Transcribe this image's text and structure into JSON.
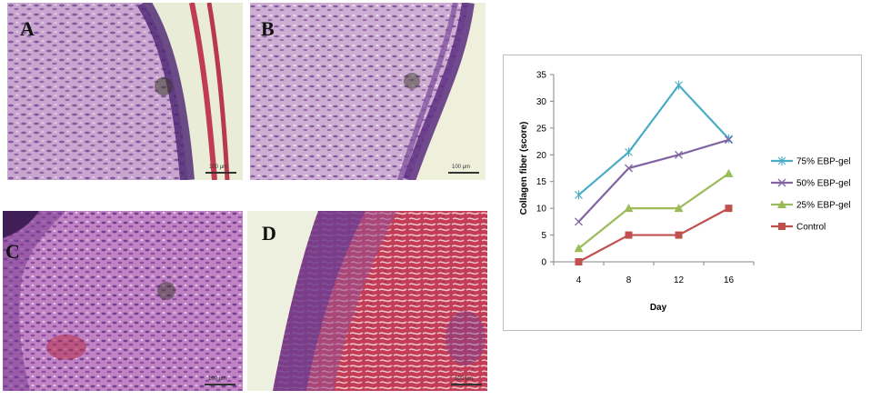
{
  "panels": [
    {
      "id": "A",
      "label": "A",
      "scalebar": "100 µm"
    },
    {
      "id": "B",
      "label": "B",
      "scalebar": "100 µm"
    },
    {
      "id": "C",
      "label": "C",
      "scalebar": "100 µm"
    },
    {
      "id": "D",
      "label": "D",
      "scalebar": "100 µm"
    }
  ],
  "chart_data": {
    "type": "line",
    "title": "",
    "xlabel": "Day",
    "ylabel": "Collagen fiber (score)",
    "x": [
      4,
      8,
      12,
      16
    ],
    "ylim": [
      0,
      35
    ],
    "yticks": [
      0,
      5,
      10,
      15,
      20,
      25,
      30,
      35
    ],
    "grid": false,
    "legend_position": "right",
    "series": [
      {
        "name": "75% EBP-gel",
        "values": [
          12.5,
          20.5,
          33,
          23
        ],
        "color": "#4bacc6",
        "marker": "star"
      },
      {
        "name": "50% EBP-gel",
        "values": [
          7.5,
          17.5,
          20,
          22.8
        ],
        "color": "#8064a2",
        "marker": "x"
      },
      {
        "name": "25% EBP-gel",
        "values": [
          2.5,
          10,
          10,
          16.5
        ],
        "color": "#9bbb59",
        "marker": "triangle"
      },
      {
        "name": "Control",
        "values": [
          0,
          5,
          5,
          10
        ],
        "color": "#c0504d",
        "marker": "square"
      }
    ]
  }
}
